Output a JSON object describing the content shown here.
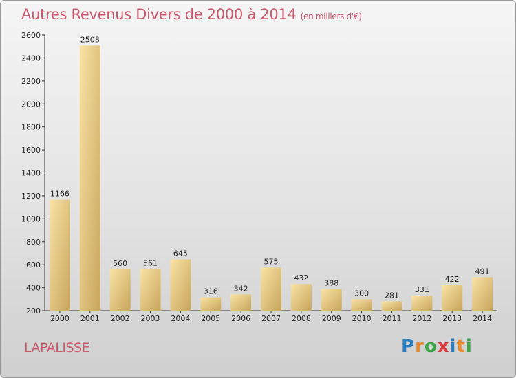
{
  "title": {
    "main": "Autres Revenus Divers de 2000 à 2014",
    "unit": "(en milliers d'€)"
  },
  "commune": "LAPALISSE",
  "logo": {
    "text": "Proxiti",
    "letters": [
      {
        "char": "P",
        "color": "#2a7fc1"
      },
      {
        "char": "r",
        "color": "#e8892b"
      },
      {
        "char": "o",
        "color": "#3aa645"
      },
      {
        "char": "x",
        "color": "#d63a3a"
      },
      {
        "char": "i",
        "color": "#2a7fc1"
      },
      {
        "char": "t",
        "color": "#e8892b"
      },
      {
        "char": "i",
        "color": "#3aa645"
      }
    ]
  },
  "colors": {
    "bar_light": "#f9e3a4",
    "bar_dark": "#c8a55c",
    "text_accent": "#cc5a6e"
  },
  "chart_data": {
    "type": "bar",
    "categories": [
      "2000",
      "2001",
      "2002",
      "2003",
      "2004",
      "2005",
      "2006",
      "2007",
      "2008",
      "2009",
      "2010",
      "2011",
      "2012",
      "2013",
      "2014"
    ],
    "values": [
      1166,
      2508,
      560,
      561,
      645,
      316,
      342,
      575,
      432,
      388,
      300,
      281,
      331,
      422,
      491
    ],
    "ylim": [
      200,
      2600
    ],
    "yticks": [
      200,
      400,
      600,
      800,
      1000,
      1200,
      1400,
      1600,
      1800,
      2000,
      2200,
      2400,
      2600
    ],
    "title": "Autres Revenus Divers de 2000 à 2014",
    "xlabel": "",
    "ylabel": "",
    "grid": false
  }
}
